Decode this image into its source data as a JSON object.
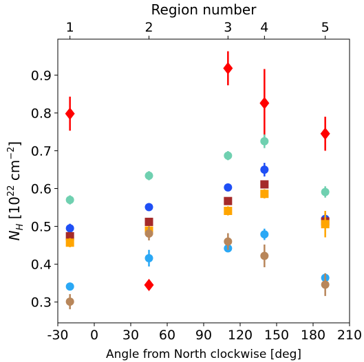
{
  "chart_data": {
    "type": "scatter",
    "xlabel": "Angle from North clockwise [deg]",
    "ylabel": "N_H [10^22 cm^-2]",
    "top_xlabel": "Region number",
    "xlim": [
      -30,
      210
    ],
    "ylim": [
      0.245,
      0.995
    ],
    "xticks": [
      -30,
      0,
      30,
      60,
      90,
      120,
      150,
      180,
      210
    ],
    "yticks": [
      0.3,
      0.4,
      0.5,
      0.6,
      0.7,
      0.8,
      0.9
    ],
    "top_ticks": [
      {
        "label": "1",
        "x": -20
      },
      {
        "label": "2",
        "x": 45
      },
      {
        "label": "3",
        "x": 110
      },
      {
        "label": "4",
        "x": 140
      },
      {
        "label": "5",
        "x": 190
      }
    ],
    "series": [
      {
        "color": "#ff0000",
        "marker": "diamond",
        "points": [
          {
            "x": -20,
            "y": 0.798,
            "err": 0.045
          },
          {
            "x": 45,
            "y": 0.345,
            "err": 0
          },
          {
            "x": 110,
            "y": 0.918,
            "err": 0.045
          },
          {
            "x": 140,
            "y": 0.826,
            "err": 0.09
          },
          {
            "x": 190,
            "y": 0.745,
            "err": 0.045
          }
        ]
      },
      {
        "color": "#6fd0b0",
        "marker": "circle",
        "points": [
          {
            "x": -20,
            "y": 0.57,
            "err": 0.012
          },
          {
            "x": 45,
            "y": 0.634,
            "err": 0.012
          },
          {
            "x": 110,
            "y": 0.687,
            "err": 0.012
          },
          {
            "x": 140,
            "y": 0.725,
            "err": 0.018
          },
          {
            "x": 190,
            "y": 0.591,
            "err": 0.015
          }
        ]
      },
      {
        "color": "#1f4ff5",
        "marker": "circle",
        "points": [
          {
            "x": -20,
            "y": 0.495,
            "err": 0.012
          },
          {
            "x": 45,
            "y": 0.551,
            "err": 0.01
          },
          {
            "x": 110,
            "y": 0.603,
            "err": 0.01
          },
          {
            "x": 140,
            "y": 0.65,
            "err": 0.018
          },
          {
            "x": 190,
            "y": 0.52,
            "err": 0.015
          }
        ]
      },
      {
        "color": "#a52a2a",
        "marker": "square",
        "points": [
          {
            "x": -20,
            "y": 0.474,
            "err": 0.01
          },
          {
            "x": 45,
            "y": 0.512,
            "err": 0.01
          },
          {
            "x": 110,
            "y": 0.567,
            "err": 0.01
          },
          {
            "x": 140,
            "y": 0.611,
            "err": 0.01
          },
          {
            "x": 190,
            "y": 0.513,
            "err": 0.01
          }
        ]
      },
      {
        "color": "#ffa500",
        "marker": "square",
        "points": [
          {
            "x": -20,
            "y": 0.457,
            "err": 0.012
          },
          {
            "x": 45,
            "y": 0.489,
            "err": 0.012
          },
          {
            "x": 110,
            "y": 0.541,
            "err": 0.012
          },
          {
            "x": 140,
            "y": 0.586,
            "err": 0.012
          },
          {
            "x": 190,
            "y": 0.506,
            "err": 0.035
          }
        ]
      },
      {
        "color": "#2aa8f5",
        "marker": "circle",
        "points": [
          {
            "x": -20,
            "y": 0.341,
            "err": 0.01
          },
          {
            "x": 45,
            "y": 0.416,
            "err": 0.022
          },
          {
            "x": 110,
            "y": 0.442,
            "err": 0.01
          },
          {
            "x": 140,
            "y": 0.479,
            "err": 0.015
          },
          {
            "x": 190,
            "y": 0.364,
            "err": 0.012
          }
        ]
      },
      {
        "color": "#b8865a",
        "marker": "circle",
        "points": [
          {
            "x": -20,
            "y": 0.301,
            "err": 0.02
          },
          {
            "x": 45,
            "y": 0.481,
            "err": 0.018
          },
          {
            "x": 110,
            "y": 0.46,
            "err": 0.022
          },
          {
            "x": 140,
            "y": 0.422,
            "err": 0.03
          },
          {
            "x": 190,
            "y": 0.346,
            "err": 0.03
          }
        ]
      }
    ]
  }
}
